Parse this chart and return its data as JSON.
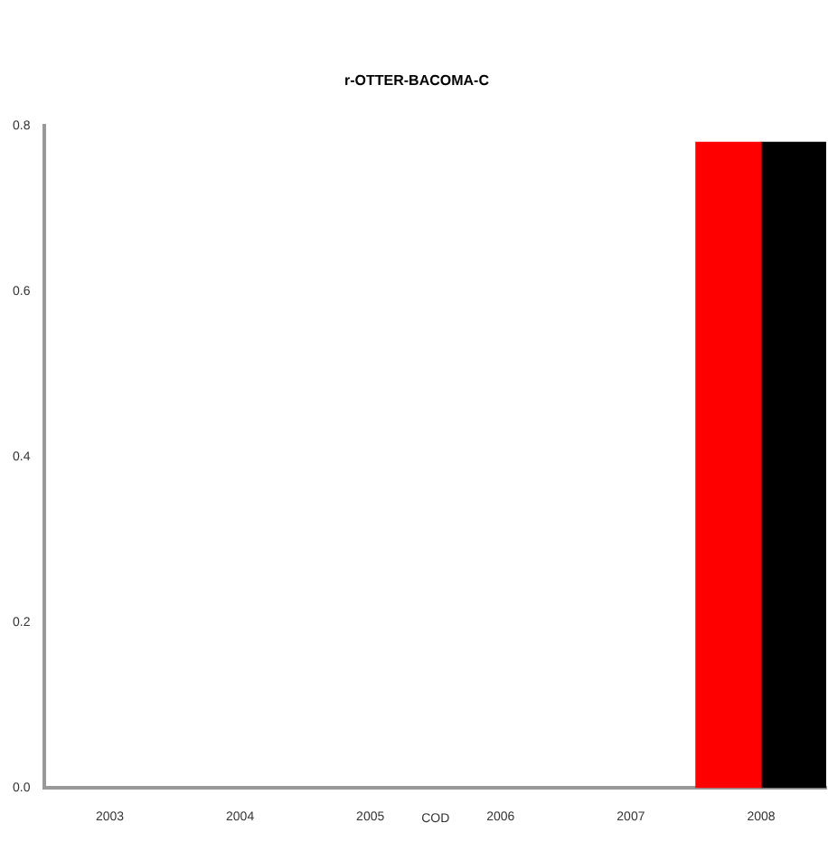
{
  "chart_data": {
    "type": "bar",
    "title": "r-OTTER-BACOMA-C",
    "xlabel": "COD",
    "categories": [
      "2003",
      "2004",
      "2005",
      "2006",
      "2007",
      "2008"
    ],
    "series": [
      {
        "color": "#ff0000",
        "values": [
          null,
          null,
          null,
          null,
          null,
          0.78
        ]
      },
      {
        "color": "#000000",
        "values": [
          null,
          null,
          null,
          null,
          null,
          0.78
        ]
      }
    ],
    "ylim": [
      0,
      0.8
    ],
    "yticks": [
      {
        "value": 0,
        "label": "0.0"
      },
      {
        "value": 0.2,
        "label": "0.2"
      },
      {
        "value": 0.4,
        "label": "0.4"
      },
      {
        "value": 0.6,
        "label": "0.6"
      },
      {
        "value": 0.8,
        "label": "0.8"
      }
    ],
    "grid": false,
    "legend": false
  }
}
